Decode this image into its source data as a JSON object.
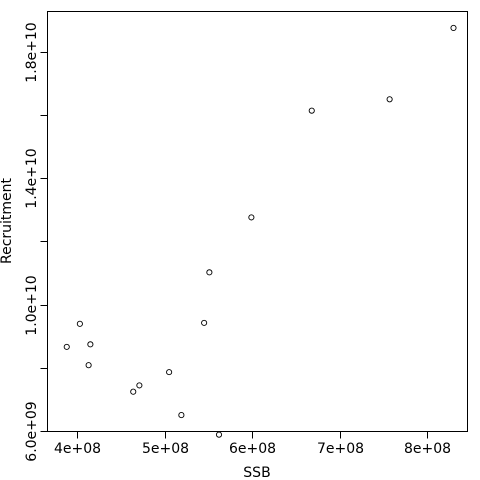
{
  "chart_data": {
    "type": "scatter",
    "title": "",
    "xlabel": "SSB",
    "ylabel": "Recruitment",
    "xlim": [
      366000000,
      846000000
    ],
    "ylim": [
      5980000000,
      19280000000
    ],
    "x_ticks": [
      400000000,
      500000000,
      600000000,
      700000000,
      800000000
    ],
    "x_tick_labels": [
      "4e+08",
      "5e+08",
      "6e+08",
      "7e+08",
      "8e+08"
    ],
    "y_ticks": [
      6000000000,
      8000000000,
      10000000000,
      12000000000,
      14000000000,
      16000000000,
      18000000000
    ],
    "y_tick_labels": [
      "6.0e+09",
      "",
      "1.0e+10",
      "",
      "1.4e+10",
      "",
      "1.8e+10"
    ],
    "grid": false,
    "legend": "none",
    "points": [
      {
        "x": 388000000,
        "y": 8660000000
      },
      {
        "x": 403000000,
        "y": 9390000000
      },
      {
        "x": 413000000,
        "y": 8080000000
      },
      {
        "x": 415000000,
        "y": 8740000000
      },
      {
        "x": 464000000,
        "y": 7240000000
      },
      {
        "x": 471000000,
        "y": 7440000000
      },
      {
        "x": 505000000,
        "y": 7860000000
      },
      {
        "x": 519000000,
        "y": 6500000000
      },
      {
        "x": 545000000,
        "y": 9420000000
      },
      {
        "x": 551000000,
        "y": 11020000000
      },
      {
        "x": 562000000,
        "y": 5880000000
      },
      {
        "x": 599000000,
        "y": 12760000000
      },
      {
        "x": 668000000,
        "y": 16140000000
      },
      {
        "x": 757000000,
        "y": 16500000000
      },
      {
        "x": 830000000,
        "y": 18760000000
      }
    ]
  }
}
